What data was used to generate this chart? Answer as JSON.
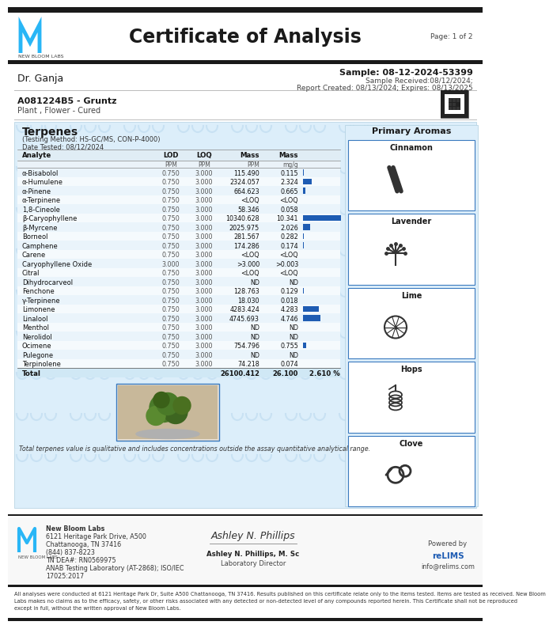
{
  "title": "Certificate of Analysis",
  "page": "Page: 1 of 2",
  "lab_name": "NEW BLOOM LABS",
  "client": "Dr. Ganja",
  "sample_id": "Sample: 08-12-2024-53399",
  "sample_received": "Sample Received:08/12/2024;",
  "report_created": "Report Created: 08/13/2024; Expires: 08/13/2025",
  "batch": "A081224B5 - Gruntz",
  "plant_type": "Plant , Flower - Cured",
  "section_title": "Terpenes",
  "testing_method": "(Testing Method: HS-GC/MS, CON-P-4000)",
  "date_tested": "Date Tested: 08/12/2024",
  "analytes": [
    {
      "name": "α-Bisabolol",
      "lod": "0.750",
      "loq": "3.000",
      "mass_ppm": "115.490",
      "mass_mgg": "0.115",
      "bar": 0.115
    },
    {
      "name": "α-Humulene",
      "lod": "0.750",
      "loq": "3.000",
      "mass_ppm": "2324.057",
      "mass_mgg": "2.324",
      "bar": 2.324
    },
    {
      "name": "α-Pinene",
      "lod": "0.750",
      "loq": "3.000",
      "mass_ppm": "664.623",
      "mass_mgg": "0.665",
      "bar": 0.665
    },
    {
      "name": "α-Terpinene",
      "lod": "0.750",
      "loq": "3.000",
      "mass_ppm": "<LOQ",
      "mass_mgg": "<LOQ",
      "bar": 0
    },
    {
      "name": "1,8-Cineole",
      "lod": "0.750",
      "loq": "3.000",
      "mass_ppm": "58.346",
      "mass_mgg": "0.058",
      "bar": 0.058
    },
    {
      "name": "β-Caryophyllene",
      "lod": "0.750",
      "loq": "3.000",
      "mass_ppm": "10340.628",
      "mass_mgg": "10.341",
      "bar": 10.341
    },
    {
      "name": "β-Myrcene",
      "lod": "0.750",
      "loq": "3.000",
      "mass_ppm": "2025.975",
      "mass_mgg": "2.026",
      "bar": 2.026
    },
    {
      "name": "Borneol",
      "lod": "0.750",
      "loq": "3.000",
      "mass_ppm": "281.567",
      "mass_mgg": "0.282",
      "bar": 0.282
    },
    {
      "name": "Camphene",
      "lod": "0.750",
      "loq": "3.000",
      "mass_ppm": "174.286",
      "mass_mgg": "0.174",
      "bar": 0.174
    },
    {
      "name": "Carene",
      "lod": "0.750",
      "loq": "3.000",
      "mass_ppm": "<LOQ",
      "mass_mgg": "<LOQ",
      "bar": 0
    },
    {
      "name": "Caryophyllene Oxide",
      "lod": "3.000",
      "loq": "3.000",
      "mass_ppm": ">3.000",
      "mass_mgg": ">0.003",
      "bar": 0
    },
    {
      "name": "Citral",
      "lod": "0.750",
      "loq": "3.000",
      "mass_ppm": "<LOQ",
      "mass_mgg": "<LOQ",
      "bar": 0
    },
    {
      "name": "Dihydrocarveol",
      "lod": "0.750",
      "loq": "3.000",
      "mass_ppm": "ND",
      "mass_mgg": "ND",
      "bar": 0
    },
    {
      "name": "Fenchone",
      "lod": "0.750",
      "loq": "3.000",
      "mass_ppm": "128.763",
      "mass_mgg": "0.129",
      "bar": 0.129
    },
    {
      "name": "γ-Terpinene",
      "lod": "0.750",
      "loq": "3.000",
      "mass_ppm": "18.030",
      "mass_mgg": "0.018",
      "bar": 0.018
    },
    {
      "name": "Limonene",
      "lod": "0.750",
      "loq": "3.000",
      "mass_ppm": "4283.424",
      "mass_mgg": "4.283",
      "bar": 4.283
    },
    {
      "name": "Linalool",
      "lod": "0.750",
      "loq": "3.000",
      "mass_ppm": "4745.693",
      "mass_mgg": "4.746",
      "bar": 4.746
    },
    {
      "name": "Menthol",
      "lod": "0.750",
      "loq": "3.000",
      "mass_ppm": "ND",
      "mass_mgg": "ND",
      "bar": 0
    },
    {
      "name": "Nerolidol",
      "lod": "0.750",
      "loq": "3.000",
      "mass_ppm": "ND",
      "mass_mgg": "ND",
      "bar": 0
    },
    {
      "name": "Ocimene",
      "lod": "0.750",
      "loq": "3.000",
      "mass_ppm": "754.796",
      "mass_mgg": "0.755",
      "bar": 0.755
    },
    {
      "name": "Pulegone",
      "lod": "0.750",
      "loq": "3.000",
      "mass_ppm": "ND",
      "mass_mgg": "ND",
      "bar": 0
    },
    {
      "name": "Terpinolene",
      "lod": "0.750",
      "loq": "3.000",
      "mass_ppm": "74.218",
      "mass_mgg": "0.074",
      "bar": 0.074
    }
  ],
  "total": {
    "mass_ppm": "26100.412",
    "mass_mgg": "26.100",
    "percent": "2.610 %"
  },
  "bar_max": 10.341,
  "primary_aromas": [
    "Cinnamon",
    "Lavender",
    "Lime",
    "Hops",
    "Clove"
  ],
  "total_note": "Total terpenes value is qualitative and includes concentrations outside the assay quantitative analytical range.",
  "disclaimer": "All analyses were conducted at 6121 Heritage Park Dr, Suite A500 Chattanooga, TN 37416. Results published on this certificate relate only to the items tested. Items are tested as received. New Bloom Labs makes no claims as to the efficacy, safety, or other risks associated with any detected or non-detected level of any compounds reported herein. This Certificate shall not be reproduced except in full, without the written approval of New Bloom Labs.",
  "footer_address_lines": [
    "New Bloom Labs",
    "6121 Heritage Park Drive, A500",
    "Chattanooga, TN 37416",
    "(844) 837-8223",
    "TN DEA#: RN0569975",
    "ANAB Testing Laboratory (AT-2868); ISO/IEC",
    "17025:2017"
  ],
  "colors": {
    "black": "#1a1a1a",
    "white": "#ffffff",
    "light_blue_bg": "#dceefa",
    "table_stripe1": "#eaf4fb",
    "table_stripe2": "#f5fafd",
    "blue_bar": "#1e5cb3",
    "border_blue": "#4a8fc4",
    "text_dark": "#111111",
    "text_gray": "#555555",
    "aroma_border": "#3a7abf",
    "total_row": "#d0e8f5"
  }
}
